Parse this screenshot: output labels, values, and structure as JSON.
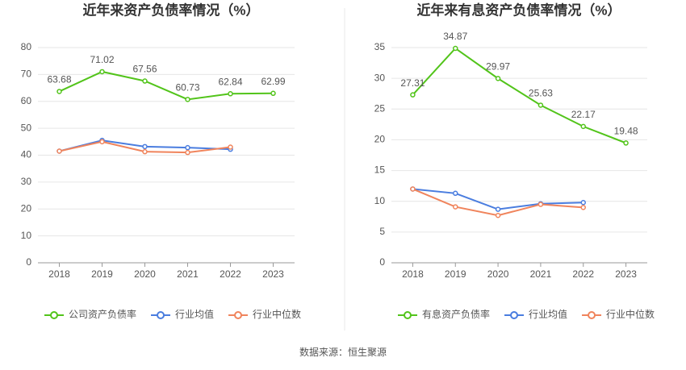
{
  "chart_data": [
    {
      "type": "line",
      "title": "近年来资产负债率情况（%）",
      "categories": [
        "2018",
        "2019",
        "2020",
        "2021",
        "2022",
        "2023"
      ],
      "series": [
        {
          "name": "公司资产负债率",
          "color": "#52c41a",
          "values": [
            63.68,
            71.02,
            67.56,
            60.73,
            62.84,
            62.99
          ],
          "labels": true
        },
        {
          "name": "行业均值",
          "color": "#4a7ddf",
          "values": [
            41.5,
            45.5,
            43.2,
            42.8,
            42.2,
            null
          ]
        },
        {
          "name": "行业中位数",
          "color": "#f0845c",
          "values": [
            41.5,
            45.0,
            41.3,
            41.0,
            43.0,
            null
          ]
        }
      ],
      "ylim": [
        0,
        80
      ],
      "yticks": [
        0,
        10,
        20,
        30,
        40,
        50,
        60,
        70,
        80
      ],
      "grid": true
    },
    {
      "type": "line",
      "title": "近年来有息资产负债率情况（%）",
      "categories": [
        "2018",
        "2019",
        "2020",
        "2021",
        "2022",
        "2023"
      ],
      "series": [
        {
          "name": "有息资产负债率",
          "color": "#52c41a",
          "values": [
            27.31,
            34.87,
            29.97,
            25.63,
            22.17,
            19.48
          ],
          "labels": true
        },
        {
          "name": "行业均值",
          "color": "#4a7ddf",
          "values": [
            12.0,
            11.3,
            8.7,
            9.6,
            9.8,
            null
          ]
        },
        {
          "name": "行业中位数",
          "color": "#f0845c",
          "values": [
            12.0,
            9.1,
            7.7,
            9.5,
            9.0,
            null
          ]
        }
      ],
      "ylim": [
        0,
        35
      ],
      "yticks": [
        0,
        5,
        10,
        15,
        20,
        25,
        30,
        35
      ],
      "grid": true
    }
  ],
  "source": "数据来源：恒生聚源"
}
